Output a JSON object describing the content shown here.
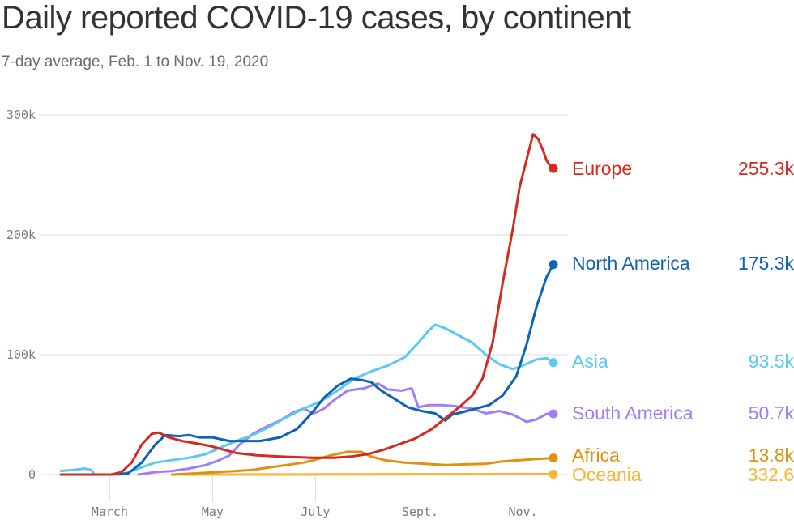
{
  "header": {
    "title": "Daily reported COVID-19 cases, by continent",
    "subtitle": "7-day average, Feb. 1 to Nov. 19, 2020"
  },
  "chart_data": {
    "type": "line",
    "title": "Daily reported COVID-19 cases, by continent",
    "subtitle": "7-day average, Feb. 1 to Nov. 19, 2020",
    "xlabel": "",
    "ylabel": "",
    "x_unit": "days since Feb. 1, 2020",
    "xlim": [
      0,
      292
    ],
    "ylim": [
      0,
      300000
    ],
    "grid": true,
    "y_ticks": [
      {
        "value": 0,
        "label": "0"
      },
      {
        "value": 100000,
        "label": "100k"
      },
      {
        "value": 200000,
        "label": "200k"
      },
      {
        "value": 300000,
        "label": "300k"
      }
    ],
    "x_ticks": [
      {
        "day": 29,
        "label": "March"
      },
      {
        "day": 90,
        "label": "May"
      },
      {
        "day": 151,
        "label": "July"
      },
      {
        "day": 213,
        "label": "Sept."
      },
      {
        "day": 274,
        "label": "Nov."
      }
    ],
    "legend": "right-end-labels",
    "series": [
      {
        "name": "Europe",
        "color": "#d42a20",
        "end_label": "255.3k",
        "points": [
          [
            0,
            0
          ],
          [
            30,
            0
          ],
          [
            36,
            2000
          ],
          [
            42,
            10000
          ],
          [
            48,
            25000
          ],
          [
            54,
            34000
          ],
          [
            58,
            35000
          ],
          [
            64,
            31000
          ],
          [
            72,
            28000
          ],
          [
            80,
            26000
          ],
          [
            88,
            24000
          ],
          [
            96,
            21000
          ],
          [
            104,
            18000
          ],
          [
            116,
            16000
          ],
          [
            130,
            15000
          ],
          [
            150,
            14000
          ],
          [
            162,
            14000
          ],
          [
            172,
            15000
          ],
          [
            182,
            17000
          ],
          [
            192,
            21000
          ],
          [
            200,
            25000
          ],
          [
            210,
            30000
          ],
          [
            220,
            38000
          ],
          [
            228,
            47000
          ],
          [
            236,
            56000
          ],
          [
            244,
            66000
          ],
          [
            250,
            80000
          ],
          [
            256,
            110000
          ],
          [
            262,
            160000
          ],
          [
            268,
            205000
          ],
          [
            272,
            240000
          ],
          [
            276,
            262000
          ],
          [
            280,
            284000
          ],
          [
            283,
            280000
          ],
          [
            286,
            270000
          ],
          [
            288,
            262000
          ],
          [
            290,
            258000
          ],
          [
            292,
            255300
          ]
        ]
      },
      {
        "name": "North America",
        "color": "#0f62b4",
        "end_label": "175.3k",
        "points": [
          [
            30,
            0
          ],
          [
            40,
            1000
          ],
          [
            48,
            10000
          ],
          [
            56,
            25000
          ],
          [
            62,
            33000
          ],
          [
            70,
            32000
          ],
          [
            76,
            33000
          ],
          [
            82,
            31000
          ],
          [
            90,
            31000
          ],
          [
            100,
            28000
          ],
          [
            118,
            28000
          ],
          [
            130,
            31000
          ],
          [
            140,
            38000
          ],
          [
            148,
            50000
          ],
          [
            156,
            64000
          ],
          [
            164,
            74000
          ],
          [
            172,
            80000
          ],
          [
            178,
            79000
          ],
          [
            184,
            77000
          ],
          [
            190,
            70000
          ],
          [
            198,
            63000
          ],
          [
            206,
            56000
          ],
          [
            214,
            53000
          ],
          [
            222,
            51000
          ],
          [
            228,
            45000
          ],
          [
            232,
            50000
          ],
          [
            238,
            52000
          ],
          [
            246,
            55000
          ],
          [
            254,
            58000
          ],
          [
            262,
            66000
          ],
          [
            270,
            82000
          ],
          [
            276,
            108000
          ],
          [
            282,
            140000
          ],
          [
            288,
            165000
          ],
          [
            292,
            175300
          ]
        ]
      },
      {
        "name": "Asia",
        "color": "#5bc8f7",
        "end_label": "93.5k",
        "points": [
          [
            0,
            3000
          ],
          [
            8,
            4000
          ],
          [
            14,
            5000
          ],
          [
            18,
            4000
          ],
          [
            20,
            0
          ],
          [
            36,
            0
          ],
          [
            46,
            5000
          ],
          [
            56,
            10000
          ],
          [
            66,
            12000
          ],
          [
            76,
            14000
          ],
          [
            86,
            17000
          ],
          [
            94,
            22000
          ],
          [
            104,
            28000
          ],
          [
            114,
            33000
          ],
          [
            124,
            40000
          ],
          [
            134,
            48000
          ],
          [
            144,
            55000
          ],
          [
            154,
            61000
          ],
          [
            164,
            70000
          ],
          [
            174,
            80000
          ],
          [
            184,
            86000
          ],
          [
            194,
            91000
          ],
          [
            204,
            98000
          ],
          [
            212,
            110000
          ],
          [
            218,
            120000
          ],
          [
            222,
            125000
          ],
          [
            228,
            122000
          ],
          [
            236,
            116000
          ],
          [
            244,
            110000
          ],
          [
            252,
            100000
          ],
          [
            260,
            92000
          ],
          [
            268,
            88000
          ],
          [
            274,
            91000
          ],
          [
            282,
            96000
          ],
          [
            288,
            97000
          ],
          [
            292,
            93500
          ]
        ]
      },
      {
        "name": "South America",
        "color": "#a07ef5",
        "end_label": "50.7k",
        "points": [
          [
            46,
            0
          ],
          [
            56,
            2000
          ],
          [
            66,
            3000
          ],
          [
            76,
            5000
          ],
          [
            86,
            8000
          ],
          [
            94,
            12000
          ],
          [
            100,
            16000
          ],
          [
            106,
            25000
          ],
          [
            114,
            34000
          ],
          [
            122,
            40000
          ],
          [
            130,
            45000
          ],
          [
            138,
            52000
          ],
          [
            144,
            55000
          ],
          [
            150,
            51000
          ],
          [
            156,
            55000
          ],
          [
            162,
            62000
          ],
          [
            170,
            70000
          ],
          [
            180,
            72000
          ],
          [
            188,
            76000
          ],
          [
            194,
            71000
          ],
          [
            202,
            70000
          ],
          [
            208,
            72000
          ],
          [
            212,
            56000
          ],
          [
            218,
            58000
          ],
          [
            226,
            58000
          ],
          [
            234,
            57000
          ],
          [
            244,
            55000
          ],
          [
            252,
            51000
          ],
          [
            260,
            53000
          ],
          [
            268,
            50000
          ],
          [
            276,
            44000
          ],
          [
            282,
            46000
          ],
          [
            288,
            50700
          ],
          [
            292,
            50700
          ]
        ]
      },
      {
        "name": "Africa",
        "color": "#e0920f",
        "end_label": "13.8k",
        "points": [
          [
            66,
            0
          ],
          [
            80,
            1000
          ],
          [
            92,
            2000
          ],
          [
            104,
            3000
          ],
          [
            114,
            4000
          ],
          [
            124,
            6000
          ],
          [
            134,
            8000
          ],
          [
            144,
            10000
          ],
          [
            150,
            12000
          ],
          [
            160,
            16000
          ],
          [
            170,
            19000
          ],
          [
            178,
            19000
          ],
          [
            184,
            15000
          ],
          [
            192,
            12000
          ],
          [
            204,
            10000
          ],
          [
            216,
            9000
          ],
          [
            228,
            8000
          ],
          [
            240,
            8500
          ],
          [
            252,
            9000
          ],
          [
            262,
            11000
          ],
          [
            272,
            12000
          ],
          [
            282,
            13000
          ],
          [
            292,
            13800
          ]
        ]
      },
      {
        "name": "Oceania",
        "color": "#fbb332",
        "end_label": "332.6",
        "points": [
          [
            66,
            0
          ],
          [
            292,
            332.6
          ]
        ]
      }
    ]
  }
}
